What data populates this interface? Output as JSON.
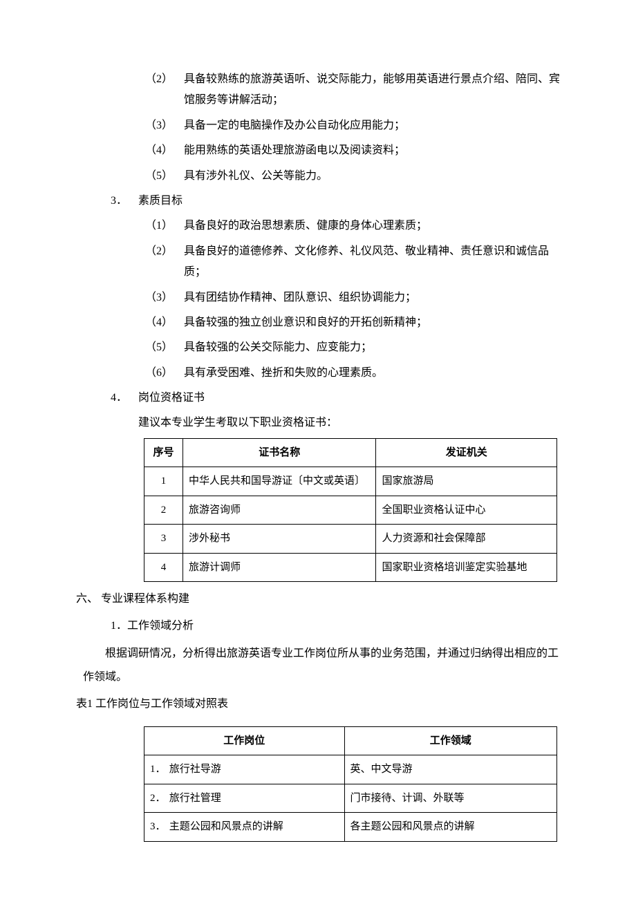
{
  "section2_items": [
    {
      "marker": "（2）",
      "text": "具备较熟练的旅游英语听、说交际能力，能够用英语进行景点介绍、陪同、宾馆服务等讲解活动；"
    },
    {
      "marker": "（3）",
      "text": "具备一定的电脑操作及办公自动化应用能力；"
    },
    {
      "marker": "（4）",
      "text": "能用熟练的英语处理旅游函电以及阅读资料；"
    },
    {
      "marker": "（5）",
      "text": "具有涉外礼仪、公关等能力。"
    }
  ],
  "section3": {
    "marker": "3．",
    "title": "素质目标",
    "items": [
      {
        "marker": "（1）",
        "text": "具备良好的政治思想素质、健康的身体心理素质；"
      },
      {
        "marker": "（2）",
        "text": "具备良好的道德修养、文化修养、礼仪风范、敬业精神、责任意识和诚信品质；"
      },
      {
        "marker": "（3）",
        "text": "具有团结协作精神、团队意识、组织协调能力；"
      },
      {
        "marker": "（4）",
        "text": "具备较强的独立创业意识和良好的开拓创新精神；"
      },
      {
        "marker": "（5）",
        "text": "具备较强的公关交际能力、应变能力；"
      },
      {
        "marker": "（6）",
        "text": "具有承受困难、挫折和失败的心理素质。"
      }
    ]
  },
  "section4": {
    "marker": "4．",
    "title": "岗位资格证书",
    "recommendation": "建议本专业学生考取以下职业资格证书：",
    "table": {
      "headers": {
        "seq": "序号",
        "name": "证书名称",
        "org": "发证机关"
      },
      "rows": [
        {
          "seq": "1",
          "name": "中华人民共和国导游证〔中文或英语〕",
          "org": "国家旅游局"
        },
        {
          "seq": "2",
          "name": "旅游咨询师",
          "org": "全国职业资格认证中心"
        },
        {
          "seq": "3",
          "name": "涉外秘书",
          "org": "人力资源和社会保障部"
        },
        {
          "seq": "4",
          "name": "旅游计调师",
          "org": "国家职业资格培训鉴定实验基地"
        }
      ]
    }
  },
  "section6": {
    "heading": "六、 专业课程体系构建",
    "sub1": {
      "marker": "1．",
      "title": "工作领域分析",
      "para": "根据调研情况，分析得出旅游英语专业工作岗位所从事的业务范围，并通过归纳得出相应的工作领域。"
    },
    "table_caption": "表1   工作岗位与工作领域对照表",
    "table": {
      "headers": {
        "pos": "工作岗位",
        "dom": "工作领域"
      },
      "rows": [
        {
          "num": "1．",
          "pos": "旅行社导游",
          "dom": "英、中文导游"
        },
        {
          "num": "2．",
          "pos": "旅行社管理",
          "dom": "门市接待、计调、外联等"
        },
        {
          "num": "3．",
          "pos": "主题公园和风景点的讲解",
          "dom": "各主题公园和风景点的讲解"
        }
      ]
    }
  }
}
